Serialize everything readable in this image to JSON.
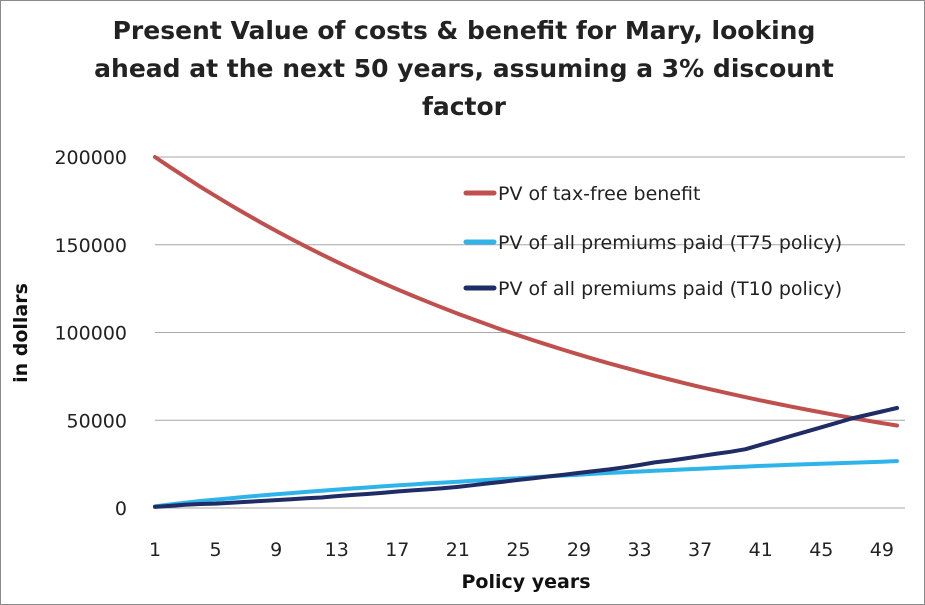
{
  "chart_data": {
    "type": "line",
    "title": "Present Value of costs & benefit for Mary, looking ahead at the next 50 years, assuming a 3% discount factor",
    "xlabel": "Policy years",
    "ylabel": "in dollars",
    "ylim": [
      0,
      200000
    ],
    "yticks": [
      "0",
      "50000",
      "100000",
      "150000",
      "200000"
    ],
    "xticks": [
      "1",
      "5",
      "9",
      "13",
      "17",
      "21",
      "25",
      "29",
      "33",
      "37",
      "41",
      "45",
      "49"
    ],
    "grid": true,
    "legend_position": "top-right",
    "x": [
      1,
      2,
      3,
      4,
      5,
      6,
      7,
      8,
      9,
      10,
      11,
      12,
      13,
      14,
      15,
      16,
      17,
      18,
      19,
      20,
      21,
      22,
      23,
      24,
      25,
      26,
      27,
      28,
      29,
      30,
      31,
      32,
      33,
      34,
      35,
      36,
      37,
      38,
      39,
      40,
      41,
      42,
      43,
      44,
      45,
      46,
      47,
      48,
      49,
      50
    ],
    "series": [
      {
        "name": "PV of tax-free benefit",
        "color": "#c0504d",
        "values": [
          200000,
          194174,
          188519,
          183028,
          177697,
          172522,
          167497,
          162618,
          157882,
          153283,
          148819,
          144484,
          140276,
          136190,
          132223,
          128372,
          124633,
          121003,
          117479,
          114057,
          110734,
          107509,
          104378,
          101338,
          98386,
          95521,
          92738,
          90037,
          87415,
          84869,
          82397,
          79997,
          77667,
          75405,
          73208,
          71076,
          69006,
          66996,
          65045,
          63150,
          61311,
          59525,
          57792,
          56108,
          54474,
          52888,
          51347,
          49852,
          48400,
          46990
        ]
      },
      {
        "name": "PV of all premiums paid (T75 policy)",
        "color": "#2fb4ea",
        "values": [
          900,
          2000,
          3000,
          4000,
          4800,
          5600,
          6400,
          7100,
          7800,
          8500,
          9200,
          9800,
          10500,
          11100,
          11700,
          12300,
          12900,
          13400,
          14000,
          14500,
          15000,
          15500,
          16000,
          16500,
          17000,
          17500,
          18000,
          18500,
          19000,
          19500,
          20000,
          20400,
          20800,
          21200,
          21600,
          22000,
          22400,
          22800,
          23200,
          23600,
          24000,
          24300,
          24600,
          24900,
          25200,
          25500,
          25800,
          26100,
          26400,
          26700
        ]
      },
      {
        "name": "PV of all premiums paid (T10 policy)",
        "color": "#1f2c66",
        "values": [
          600,
          1200,
          1800,
          2300,
          2500,
          3000,
          3500,
          4000,
          4500,
          5000,
          5500,
          6000,
          6800,
          7400,
          8000,
          8600,
          9400,
          10000,
          10600,
          11200,
          12000,
          13000,
          14000,
          15000,
          16000,
          17000,
          18000,
          19000,
          20000,
          21000,
          22000,
          23200,
          24500,
          26000,
          27000,
          28200,
          29500,
          30800,
          32000,
          33500,
          36000,
          38500,
          41000,
          43500,
          46000,
          48500,
          51000,
          53000,
          55000,
          57000
        ]
      }
    ]
  }
}
